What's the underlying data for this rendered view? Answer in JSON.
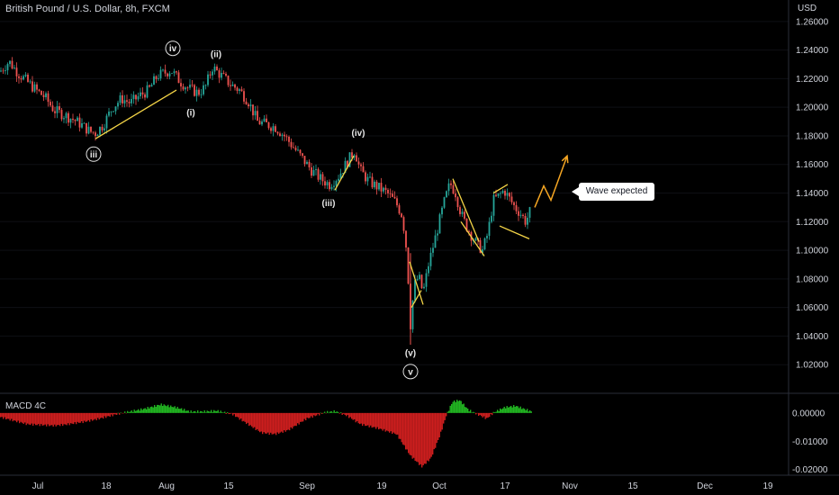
{
  "header": {
    "title": "British Pound / U.S. Dollar, 8h, FXCM",
    "currency": "USD"
  },
  "indicator": {
    "label": "MACD 4C"
  },
  "callout": {
    "text": "Wave expected"
  },
  "colors": {
    "up": "#26a69a",
    "down": "#ef5350",
    "macd_up": "#21b521",
    "macd_down": "#cc1e1e",
    "wedge": "#f5d547",
    "projection": "#f5a623",
    "axis_text": "#d1d4dc",
    "bg": "#000000"
  },
  "chart_data": [
    {
      "type": "candlestick",
      "title": "British Pound / U.S. Dollar, 8h, FXCM",
      "ylabel": "USD",
      "ylim": [
        1.0,
        1.275
      ],
      "x_ticks": [
        "Jul",
        "18",
        "Aug",
        "15",
        "Sep",
        "19",
        "Oct",
        "17",
        "Nov",
        "15",
        "Dec",
        "19"
      ],
      "y_ticks": [
        "1.26000",
        "1.24000",
        "1.22000",
        "1.20000",
        "1.18000",
        "1.16000",
        "1.14000",
        "1.12000",
        "1.10000",
        "1.08000",
        "1.06000",
        "1.04000",
        "1.02000"
      ],
      "price_path": [
        [
          0,
          1.225
        ],
        [
          10,
          1.232
        ],
        [
          20,
          1.224
        ],
        [
          30,
          1.218
        ],
        [
          40,
          1.212
        ],
        [
          50,
          1.207
        ],
        [
          60,
          1.198
        ],
        [
          70,
          1.195
        ],
        [
          80,
          1.192
        ],
        [
          90,
          1.188
        ],
        [
          100,
          1.183
        ],
        [
          106,
          1.182
        ],
        [
          115,
          1.188
        ],
        [
          125,
          1.2
        ],
        [
          135,
          1.206
        ],
        [
          145,
          1.203
        ],
        [
          155,
          1.208
        ],
        [
          165,
          1.212
        ],
        [
          175,
          1.222
        ],
        [
          190,
          1.226
        ],
        [
          200,
          1.218
        ],
        [
          210,
          1.213
        ],
        [
          220,
          1.21
        ],
        [
          228,
          1.214
        ],
        [
          236,
          1.228
        ],
        [
          246,
          1.222
        ],
        [
          256,
          1.216
        ],
        [
          266,
          1.212
        ],
        [
          276,
          1.204
        ],
        [
          286,
          1.19
        ],
        [
          296,
          1.188
        ],
        [
          306,
          1.186
        ],
        [
          316,
          1.18
        ],
        [
          326,
          1.172
        ],
        [
          336,
          1.164
        ],
        [
          346,
          1.156
        ],
        [
          356,
          1.15
        ],
        [
          366,
          1.146
        ],
        [
          376,
          1.152
        ],
        [
          386,
          1.162
        ],
        [
          394,
          1.17
        ],
        [
          400,
          1.156
        ],
        [
          410,
          1.148
        ],
        [
          420,
          1.144
        ],
        [
          430,
          1.14
        ],
        [
          440,
          1.133
        ],
        [
          447,
          1.124
        ],
        [
          452,
          1.098
        ],
        [
          456,
          1.048
        ],
        [
          460,
          1.075
        ],
        [
          465,
          1.082
        ],
        [
          470,
          1.07
        ],
        [
          476,
          1.09
        ],
        [
          482,
          1.105
        ],
        [
          488,
          1.12
        ],
        [
          494,
          1.135
        ],
        [
          500,
          1.147
        ],
        [
          506,
          1.14
        ],
        [
          512,
          1.126
        ],
        [
          518,
          1.117
        ],
        [
          524,
          1.11
        ],
        [
          530,
          1.104
        ],
        [
          536,
          1.1
        ],
        [
          542,
          1.112
        ],
        [
          548,
          1.135
        ],
        [
          554,
          1.138
        ],
        [
          560,
          1.142
        ],
        [
          566,
          1.136
        ],
        [
          572,
          1.13
        ],
        [
          578,
          1.126
        ],
        [
          584,
          1.12
        ],
        [
          590,
          1.129
        ]
      ],
      "annotations": [
        {
          "text": "iv",
          "circled": true,
          "x": 192,
          "price": 1.239
        },
        {
          "text": "(ii)",
          "circled": false,
          "x": 240,
          "price": 1.235
        },
        {
          "text": "(i)",
          "circled": false,
          "x": 212,
          "price": 1.194
        },
        {
          "text": "iii",
          "circled": true,
          "x": 104,
          "price": 1.165
        },
        {
          "text": "(iv)",
          "circled": false,
          "x": 398,
          "price": 1.18
        },
        {
          "text": "(iii)",
          "circled": false,
          "x": 365,
          "price": 1.131
        },
        {
          "text": "(v)",
          "circled": false,
          "x": 456,
          "price": 1.026
        },
        {
          "text": "v",
          "circled": true,
          "x": 456,
          "price": 1.013
        }
      ],
      "trend_lines": [
        {
          "from": [
            106,
            1.178
          ],
          "to": [
            196,
            1.212
          ],
          "color": "wedge"
        },
        {
          "from": [
            372,
            1.142
          ],
          "to": [
            393,
            1.166
          ],
          "color": "wedge"
        },
        {
          "from": [
            455,
            1.092
          ],
          "to": [
            470,
            1.062
          ],
          "color": "wedge"
        },
        {
          "from": [
            457,
            1.06
          ],
          "to": [
            468,
            1.072
          ],
          "color": "wedge"
        },
        {
          "from": [
            503,
            1.15
          ],
          "to": [
            532,
            1.106
          ],
          "color": "wedge"
        },
        {
          "from": [
            512,
            1.12
          ],
          "to": [
            538,
            1.096
          ],
          "color": "wedge"
        },
        {
          "from": [
            548,
            1.14
          ],
          "to": [
            564,
            1.146
          ],
          "color": "wedge"
        },
        {
          "from": [
            555,
            1.117
          ],
          "to": [
            588,
            1.108
          ],
          "color": "wedge"
        }
      ],
      "projection": [
        [
          594,
          1.13
        ],
        [
          604,
          1.145
        ],
        [
          612,
          1.135
        ],
        [
          630,
          1.166
        ]
      ]
    },
    {
      "type": "bar",
      "title": "MACD 4C",
      "ylim": [
        -0.022,
        0.006
      ],
      "y_ticks": [
        "0.00000",
        "-0.01000",
        "-0.02000"
      ],
      "histogram_path": [
        [
          0,
          -0.0015
        ],
        [
          30,
          -0.004
        ],
        [
          60,
          -0.0045
        ],
        [
          75,
          -0.004
        ],
        [
          95,
          -0.003
        ],
        [
          110,
          -0.002
        ],
        [
          128,
          -0.0005
        ],
        [
          140,
          0.0003
        ],
        [
          160,
          0.0015
        ],
        [
          178,
          0.003
        ],
        [
          195,
          0.002
        ],
        [
          210,
          0.0005
        ],
        [
          225,
          0.0005
        ],
        [
          240,
          0.0008
        ],
        [
          258,
          -0.0005
        ],
        [
          275,
          -0.004
        ],
        [
          290,
          -0.007
        ],
        [
          305,
          -0.0075
        ],
        [
          320,
          -0.006
        ],
        [
          340,
          -0.002
        ],
        [
          360,
          0.0002
        ],
        [
          372,
          0.0006
        ],
        [
          385,
          -0.001
        ],
        [
          400,
          -0.004
        ],
        [
          420,
          -0.0055
        ],
        [
          440,
          -0.0075
        ],
        [
          455,
          -0.015
        ],
        [
          468,
          -0.019
        ],
        [
          478,
          -0.016
        ],
        [
          488,
          -0.008
        ],
        [
          495,
          -0.001
        ],
        [
          502,
          0.004
        ],
        [
          510,
          0.0045
        ],
        [
          520,
          0.001
        ],
        [
          530,
          -0.0005
        ],
        [
          540,
          -0.002
        ],
        [
          548,
          0.0002
        ],
        [
          560,
          0.002
        ],
        [
          572,
          0.0025
        ],
        [
          590,
          0.0005
        ]
      ]
    }
  ]
}
